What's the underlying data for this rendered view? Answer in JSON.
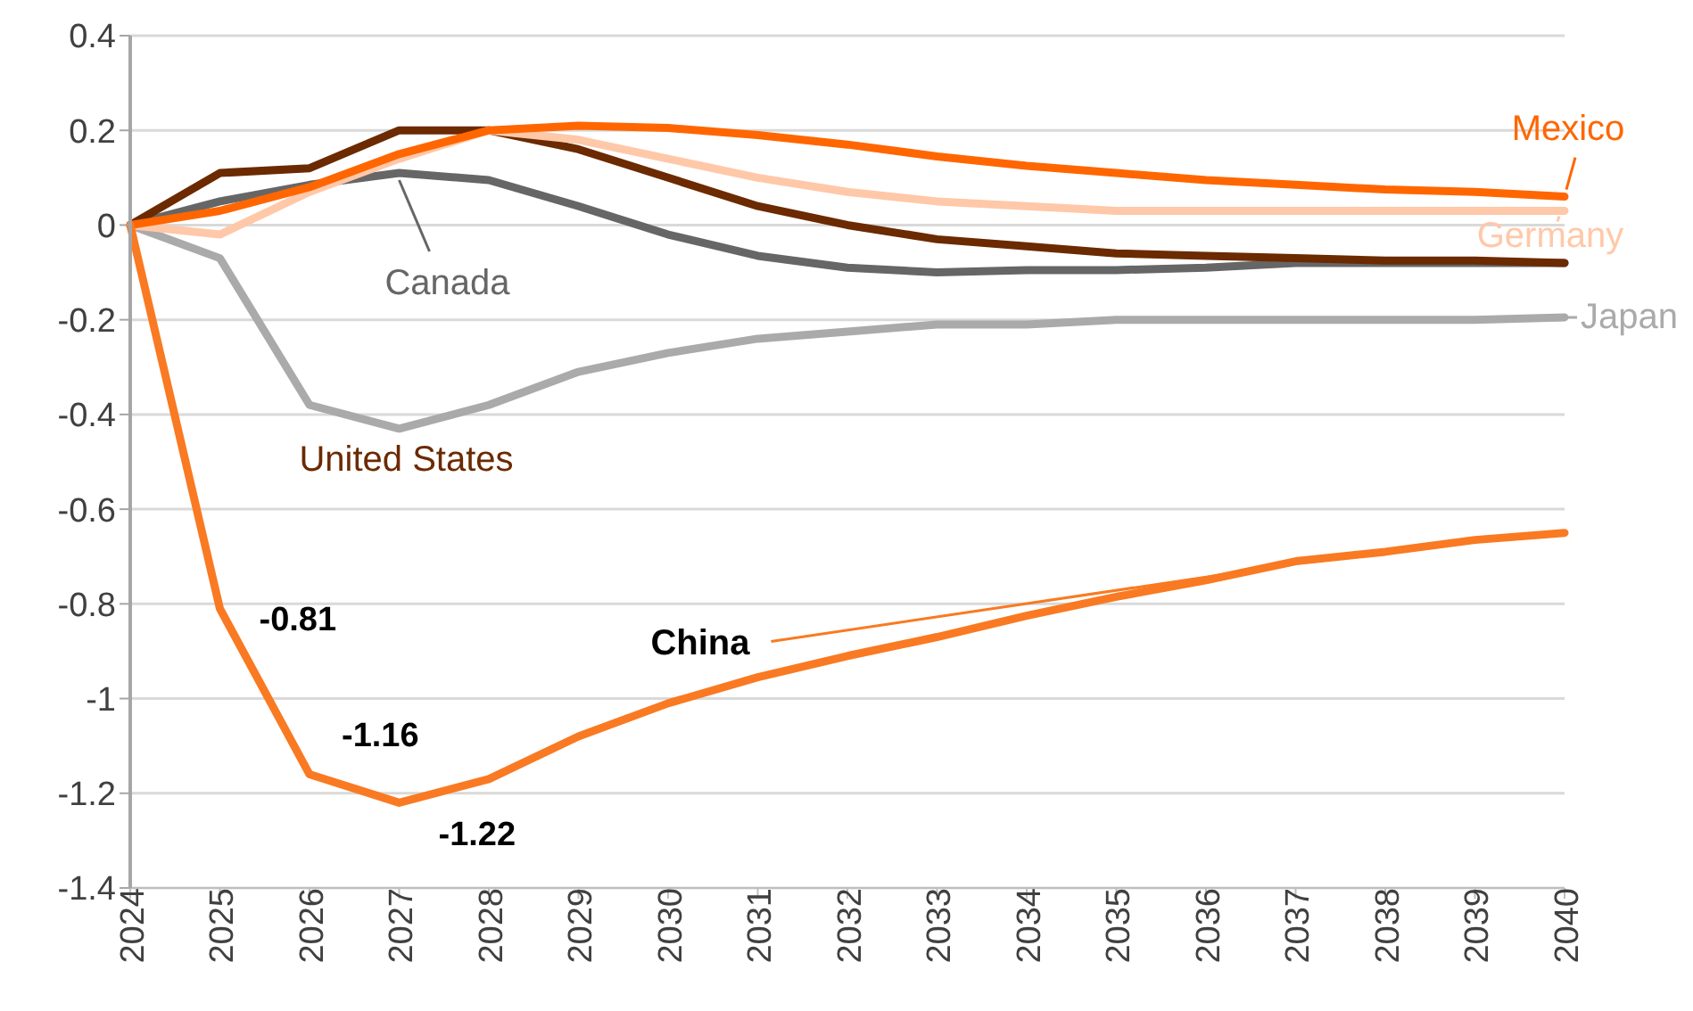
{
  "chart_data": {
    "type": "line",
    "categories": [
      "2024",
      "2025",
      "2026",
      "2027",
      "2028",
      "2029",
      "2030",
      "2031",
      "2032",
      "2033",
      "2034",
      "2035",
      "2036",
      "2037",
      "2038",
      "2039",
      "2040"
    ],
    "ylim": [
      -1.4,
      0.4
    ],
    "yticks": [
      -1.4,
      -1.2,
      -1,
      -0.8,
      -0.6,
      -0.4,
      -0.2,
      0,
      0.2,
      0.4
    ],
    "grid": "y",
    "legend": "right",
    "marker": "none",
    "line_style": "solid",
    "series": [
      {
        "name": "Japan",
        "color": "#aaaaaa",
        "values": [
          0,
          -0.07,
          -0.38,
          -0.43,
          -0.38,
          -0.31,
          -0.27,
          -0.24,
          -0.225,
          -0.21,
          -0.21,
          -0.2,
          -0.2,
          -0.2,
          -0.2,
          -0.2,
          -0.195
        ]
      },
      {
        "name": "Canada",
        "color": "#666666",
        "values": [
          0,
          0.05,
          0.085,
          0.11,
          0.095,
          0.04,
          -0.02,
          -0.065,
          -0.09,
          -0.1,
          -0.095,
          -0.095,
          -0.09,
          -0.08,
          -0.08,
          -0.08,
          -0.08
        ]
      },
      {
        "name": "United States",
        "color": "#6b2a00",
        "values": [
          0,
          0.11,
          0.12,
          0.2,
          0.2,
          0.16,
          0.1,
          0.04,
          0,
          -0.03,
          -0.045,
          -0.06,
          -0.065,
          -0.07,
          -0.075,
          -0.075,
          -0.08
        ]
      },
      {
        "name": "Germany",
        "color": "#ffc8a8",
        "values": [
          0,
          -0.02,
          0.07,
          0.14,
          0.2,
          0.18,
          0.14,
          0.1,
          0.07,
          0.05,
          0.04,
          0.03,
          0.03,
          0.03,
          0.03,
          0.03,
          0.03
        ]
      },
      {
        "name": "Mexico",
        "color": "#ff6600",
        "values": [
          0,
          0.03,
          0.08,
          0.15,
          0.2,
          0.21,
          0.205,
          0.19,
          0.17,
          0.145,
          0.125,
          0.11,
          0.095,
          0.085,
          0.075,
          0.07,
          0.06
        ]
      },
      {
        "name": "China",
        "color": "#f97a22",
        "values": [
          0,
          -0.81,
          -1.16,
          -1.22,
          -1.17,
          -1.08,
          -1.01,
          -0.955,
          -0.91,
          -0.87,
          -0.825,
          -0.785,
          -0.75,
          -0.71,
          -0.69,
          -0.665,
          -0.65
        ],
        "value_labels": [
          null,
          "-0.81",
          "-1.16",
          "-1.22",
          null,
          null,
          null,
          null,
          null,
          null,
          null,
          null,
          null,
          null,
          null,
          null,
          null
        ]
      }
    ]
  }
}
